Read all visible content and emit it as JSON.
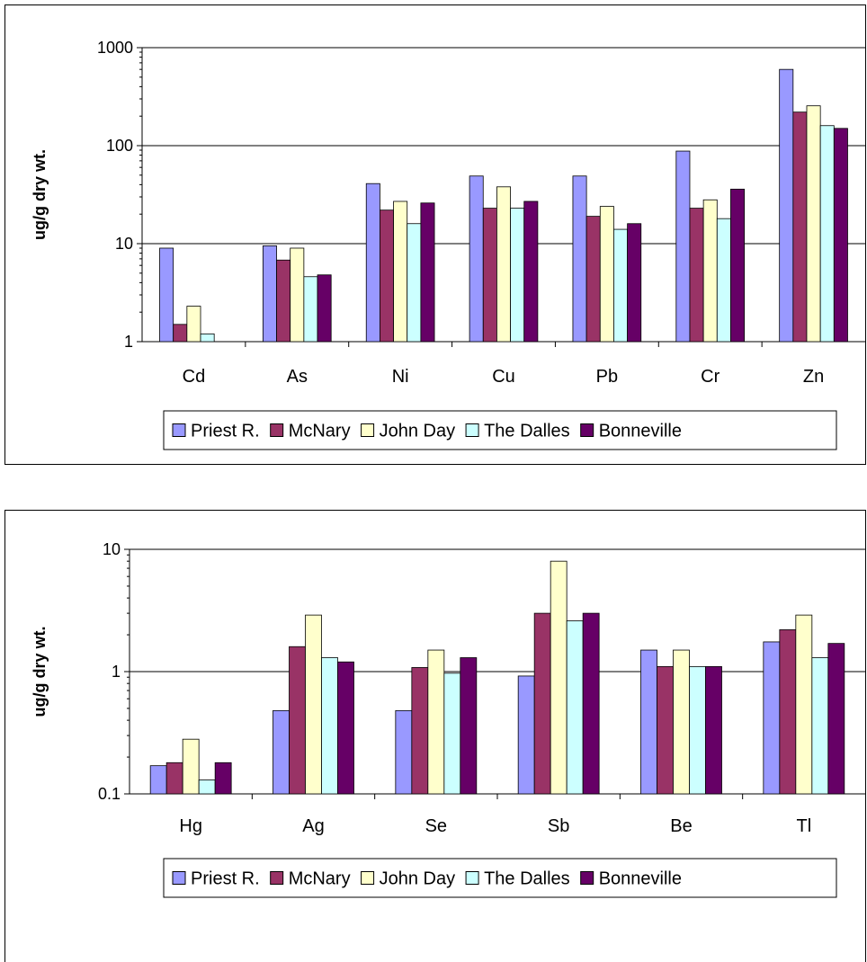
{
  "chart_data": [
    {
      "type": "bar",
      "ylabel": "ug/g dry wt.",
      "xlabel": "",
      "yscale": "log",
      "ylim": [
        1,
        1000
      ],
      "yticks": [
        "1",
        "10",
        "100",
        "1000"
      ],
      "grid": true,
      "legend_position": "bottom",
      "categories": [
        "Cd",
        "As",
        "Ni",
        "Cu",
        "Pb",
        "Cr",
        "Zn"
      ],
      "series": [
        {
          "name": "Priest R.",
          "color": "#9999ff",
          "values": [
            9,
            9.5,
            41,
            49,
            49,
            88,
            600
          ]
        },
        {
          "name": "McNary",
          "color": "#993366",
          "values": [
            1.5,
            6.8,
            22,
            23,
            19,
            23,
            220
          ]
        },
        {
          "name": "John Day",
          "color": "#ffffcc",
          "values": [
            2.3,
            9,
            27,
            38,
            24,
            28,
            255
          ]
        },
        {
          "name": "The Dalles",
          "color": "#ccffff",
          "values": [
            1.2,
            4.6,
            16,
            23,
            14,
            18,
            160
          ]
        },
        {
          "name": "Bonneville",
          "color": "#660066",
          "values": [
            null,
            4.8,
            26,
            27,
            16,
            36,
            150
          ]
        }
      ]
    },
    {
      "type": "bar",
      "ylabel": "ug/g dry wt.",
      "xlabel": "",
      "yscale": "log",
      "ylim": [
        0.1,
        10
      ],
      "yticks": [
        "0.1",
        "1",
        "10"
      ],
      "grid": true,
      "legend_position": "bottom",
      "categories": [
        "Hg",
        "Ag",
        "Se",
        "Sb",
        "Be",
        "Tl"
      ],
      "series": [
        {
          "name": "Priest R.",
          "color": "#9999ff",
          "values": [
            0.17,
            0.48,
            0.48,
            0.92,
            1.5,
            1.75
          ]
        },
        {
          "name": "McNary",
          "color": "#993366",
          "values": [
            0.18,
            1.6,
            1.08,
            3.0,
            1.1,
            2.2
          ]
        },
        {
          "name": "John Day",
          "color": "#ffffcc",
          "values": [
            0.28,
            2.9,
            1.5,
            8.0,
            1.5,
            2.9
          ]
        },
        {
          "name": "The Dalles",
          "color": "#ccffff",
          "values": [
            0.13,
            1.3,
            0.97,
            2.6,
            1.1,
            1.3
          ]
        },
        {
          "name": "Bonneville",
          "color": "#660066",
          "values": [
            0.18,
            1.2,
            1.3,
            3.0,
            1.1,
            1.7
          ]
        }
      ]
    }
  ]
}
